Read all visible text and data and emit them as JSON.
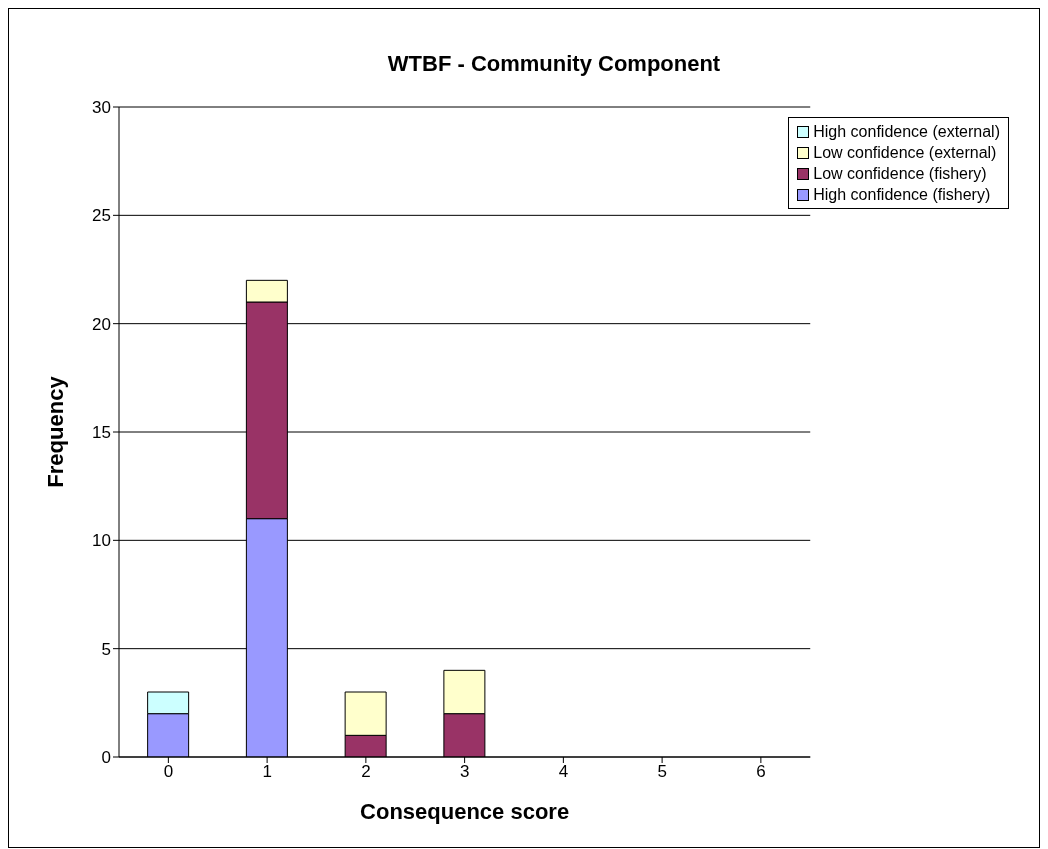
{
  "chart_data": {
    "type": "bar",
    "title": "WTBF - Community Component",
    "xlabel": "Consequence score",
    "ylabel": "Frequency",
    "categories": [
      "0",
      "1",
      "2",
      "3",
      "4",
      "5",
      "6"
    ],
    "stacked": true,
    "ylim": [
      0,
      30
    ],
    "yticks": [
      0,
      5,
      10,
      15,
      20,
      25,
      30
    ],
    "grid": "y",
    "legend": "top right",
    "series": [
      {
        "name": "High confidence (fishery)",
        "color": "#9999ff",
        "values": [
          2,
          11,
          0,
          0,
          0,
          0,
          0
        ]
      },
      {
        "name": "Low confidence (fishery)",
        "color": "#993366",
        "values": [
          0,
          10,
          1,
          2,
          0,
          0,
          0
        ]
      },
      {
        "name": "Low confidence (external)",
        "color": "#ffffcc",
        "values": [
          0,
          1,
          2,
          2,
          0,
          0,
          0
        ]
      },
      {
        "name": "High confidence (external)",
        "color": "#ccffff",
        "values": [
          1,
          0,
          0,
          0,
          0,
          0,
          0
        ]
      }
    ]
  }
}
